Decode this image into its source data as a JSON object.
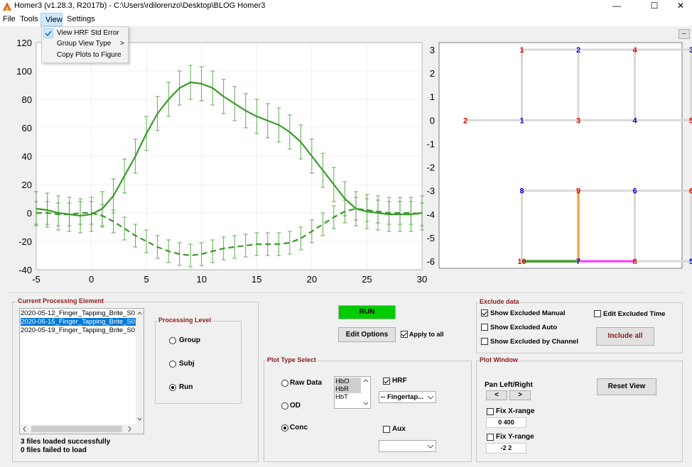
{
  "window": {
    "title": "Homer3 (v1.28.3, R2017b) - C:\\Users\\rdilorenzo\\Desktop\\BLOG Homer3",
    "min": "—",
    "max": "☐",
    "close": "✕"
  },
  "menubar": {
    "items": [
      "File",
      "Tools",
      "View",
      "Settings"
    ]
  },
  "view_menu": {
    "items": [
      "View HRF Std Error",
      "Group View Type",
      "Copy Plots to Figure"
    ],
    "submenu_arrow": ">",
    "checked": "View HRF Std Error"
  },
  "collapse_button": "--",
  "chart_data": [
    {
      "type": "line",
      "xlim": [
        -5,
        30
      ],
      "ylim": [
        -40,
        120
      ],
      "x_ticks": [
        "-5",
        "0",
        "5",
        "10",
        "15",
        "20",
        "25",
        "30"
      ],
      "y_ticks": [
        "120",
        "100",
        "80",
        "60",
        "40",
        "20",
        "0",
        "-20",
        "-40"
      ],
      "grid": true,
      "color": "#3a9a2a",
      "series": [
        {
          "style": "solid",
          "x": [
            -5,
            -4,
            -3,
            -2,
            -1,
            0,
            1,
            2,
            3,
            4,
            5,
            6,
            7,
            8,
            9,
            10,
            11,
            12,
            13,
            14,
            15,
            16,
            17,
            18,
            19,
            20,
            21,
            22,
            23,
            24,
            25,
            26,
            27,
            28,
            29,
            30
          ],
          "y": [
            3,
            2,
            0,
            -1,
            -2,
            -1,
            3,
            12,
            26,
            40,
            56,
            70,
            80,
            88,
            92,
            91,
            88,
            82,
            77,
            72,
            68,
            65,
            62,
            57,
            50,
            40,
            30,
            20,
            10,
            3,
            1,
            0,
            -1,
            -1,
            -1,
            0
          ],
          "err": 12
        },
        {
          "style": "dashed",
          "x": [
            -5,
            -4,
            -3,
            -2,
            -1,
            0,
            1,
            2,
            3,
            4,
            5,
            6,
            7,
            8,
            9,
            10,
            11,
            12,
            13,
            14,
            15,
            16,
            17,
            18,
            19,
            20,
            21,
            22,
            23,
            24,
            25,
            26,
            27,
            28,
            29,
            30
          ],
          "y": [
            0,
            0,
            -1,
            -1,
            0,
            0,
            -2,
            -6,
            -11,
            -16,
            -20,
            -24,
            -27,
            -29,
            -30,
            -29,
            -27,
            -25,
            -24,
            -23,
            -22,
            -22,
            -22,
            -21,
            -18,
            -13,
            -8,
            -3,
            1,
            3,
            2,
            1,
            0,
            0,
            0,
            -1
          ],
          "err": 8
        }
      ]
    },
    {
      "type": "scatter",
      "xlim": [
        -5,
        30
      ],
      "ylim": [
        -6.3,
        3.3
      ],
      "y_ticks": [
        "3",
        "2",
        "1",
        "0",
        "-1",
        "-2",
        "-3",
        "-4",
        "-5",
        "-6"
      ],
      "sources_color": "#e00000",
      "detectors_color": "#0000cc",
      "optodes": [
        {
          "label": "1",
          "type": "source",
          "x": 1,
          "y": 3
        },
        {
          "label": "2",
          "type": "detector",
          "x": 2,
          "y": 3
        },
        {
          "label": "4",
          "type": "source",
          "x": 3,
          "y": 3
        },
        {
          "label": "3",
          "type": "detector",
          "x": 4,
          "y": 3
        },
        {
          "label": "2",
          "type": "source",
          "x": 0,
          "y": 0
        },
        {
          "label": "1",
          "type": "detector",
          "x": 1,
          "y": 0
        },
        {
          "label": "3",
          "type": "source",
          "x": 2,
          "y": 0
        },
        {
          "label": "4",
          "type": "detector",
          "x": 3,
          "y": 0
        },
        {
          "label": "5",
          "type": "source",
          "x": 4,
          "y": 0
        },
        {
          "label": "8",
          "type": "detector",
          "x": 1,
          "y": -3
        },
        {
          "label": "9",
          "type": "source",
          "x": 2,
          "y": -3
        },
        {
          "label": "6",
          "type": "detector",
          "x": 3,
          "y": -3
        },
        {
          "label": "6",
          "type": "source",
          "x": 4,
          "y": -3
        },
        {
          "label": "10",
          "type": "source",
          "x": 1,
          "y": -6
        },
        {
          "label": "7",
          "type": "detector",
          "x": 2,
          "y": -6
        },
        {
          "label": "8",
          "type": "source",
          "x": 3,
          "y": -6
        },
        {
          "label": "5",
          "type": "detector",
          "x": 4,
          "y": -6
        },
        {
          "label": "7",
          "type": "source",
          "x": 5,
          "y": -6
        }
      ],
      "channels": [
        {
          "from": [
            1,
            3
          ],
          "to": [
            2,
            3
          ],
          "color": "#d8d8d8"
        },
        {
          "from": [
            2,
            3
          ],
          "to": [
            3,
            3
          ],
          "color": "#d8d8d8"
        },
        {
          "from": [
            3,
            3
          ],
          "to": [
            4,
            3
          ],
          "color": "#d8d8d8"
        },
        {
          "from": [
            1,
            3
          ],
          "to": [
            1,
            0
          ],
          "color": "#d8d8d8"
        },
        {
          "from": [
            2,
            3
          ],
          "to": [
            2,
            0
          ],
          "color": "#d8d8d8"
        },
        {
          "from": [
            3,
            3
          ],
          "to": [
            3,
            0
          ],
          "color": "#d8d8d8"
        },
        {
          "from": [
            4,
            3
          ],
          "to": [
            4,
            0
          ],
          "color": "#d8d8d8"
        },
        {
          "from": [
            0,
            0
          ],
          "to": [
            1,
            0
          ],
          "color": "#d8d8d8"
        },
        {
          "from": [
            1,
            0
          ],
          "to": [
            2,
            0
          ],
          "color": "#d8d8d8"
        },
        {
          "from": [
            2,
            0
          ],
          "to": [
            3,
            0
          ],
          "color": "#d8d8d8"
        },
        {
          "from": [
            3,
            0
          ],
          "to": [
            4,
            0
          ],
          "color": "#d8d8d8"
        },
        {
          "from": [
            1,
            -3
          ],
          "to": [
            2,
            -3
          ],
          "color": "#d8d8d8"
        },
        {
          "from": [
            2,
            -3
          ],
          "to": [
            3,
            -3
          ],
          "color": "#d8d8d8"
        },
        {
          "from": [
            3,
            -3
          ],
          "to": [
            4,
            -3
          ],
          "color": "#d8d8d8"
        },
        {
          "from": [
            1,
            -3
          ],
          "to": [
            1,
            -6
          ],
          "color": "#d8d8d8"
        },
        {
          "from": [
            2,
            -3
          ],
          "to": [
            2,
            -6
          ],
          "color": "#ff9933"
        },
        {
          "from": [
            3,
            -3
          ],
          "to": [
            3,
            -6
          ],
          "color": "#d8d8d8"
        },
        {
          "from": [
            4,
            -3
          ],
          "to": [
            4,
            -6
          ],
          "color": "#d8d8d8"
        },
        {
          "from": [
            1,
            -6
          ],
          "to": [
            2,
            -6
          ],
          "color": "#3a9a2a"
        },
        {
          "from": [
            2,
            -6
          ],
          "to": [
            3,
            -6
          ],
          "color": "#ff33ff"
        },
        {
          "from": [
            3,
            -6
          ],
          "to": [
            4,
            -6
          ],
          "color": "#d8d8d8"
        },
        {
          "from": [
            4,
            -6
          ],
          "to": [
            5,
            -6
          ],
          "color": "#d8d8d8"
        }
      ]
    }
  ],
  "current_processing": {
    "title": "Current Processing Element",
    "files": [
      "2020-05-12_Finger_Tapping_Brite_S01",
      "2020-05-15_Finger_Tapping_Brite_S01",
      "2020-05-19_Finger_Tapping_Brite_S01"
    ],
    "selected_index": 1,
    "status1": "3 files loaded successfully",
    "status2": "0 files failed to load"
  },
  "processing_level": {
    "title": "Processing Level",
    "options": [
      "Group",
      "Subj",
      "Run"
    ],
    "selected": "Run"
  },
  "run_button": "RUN",
  "run_color": "#00cc00",
  "edit_options": "Edit Options",
  "apply_to_all": "Apply to all",
  "plot_type": {
    "title": "Plot Type Select",
    "options": [
      "Raw Data",
      "OD",
      "Conc"
    ],
    "selected": "Conc",
    "hb_list": [
      "HbO",
      "HbR",
      "HbT"
    ],
    "hrf": "HRF",
    "condition": "-- Fingertap...",
    "aux": "Aux"
  },
  "exclude": {
    "title": "Exclude data",
    "manual": "Show Excluded Manual",
    "auto": "Show Excluded Auto",
    "by_channel": "Show Excluded by Channel",
    "edit_time": "Edit Excluded Time",
    "include_all": "Include all"
  },
  "plot_window": {
    "title": "Plot Window",
    "pan": "Pan Left/Right",
    "left": "<",
    "right": ">",
    "reset": "Reset View",
    "fix_x": "Fix X-range",
    "x_range": "0 400",
    "fix_y": "Fix Y-range",
    "y_range": "-2 2"
  }
}
